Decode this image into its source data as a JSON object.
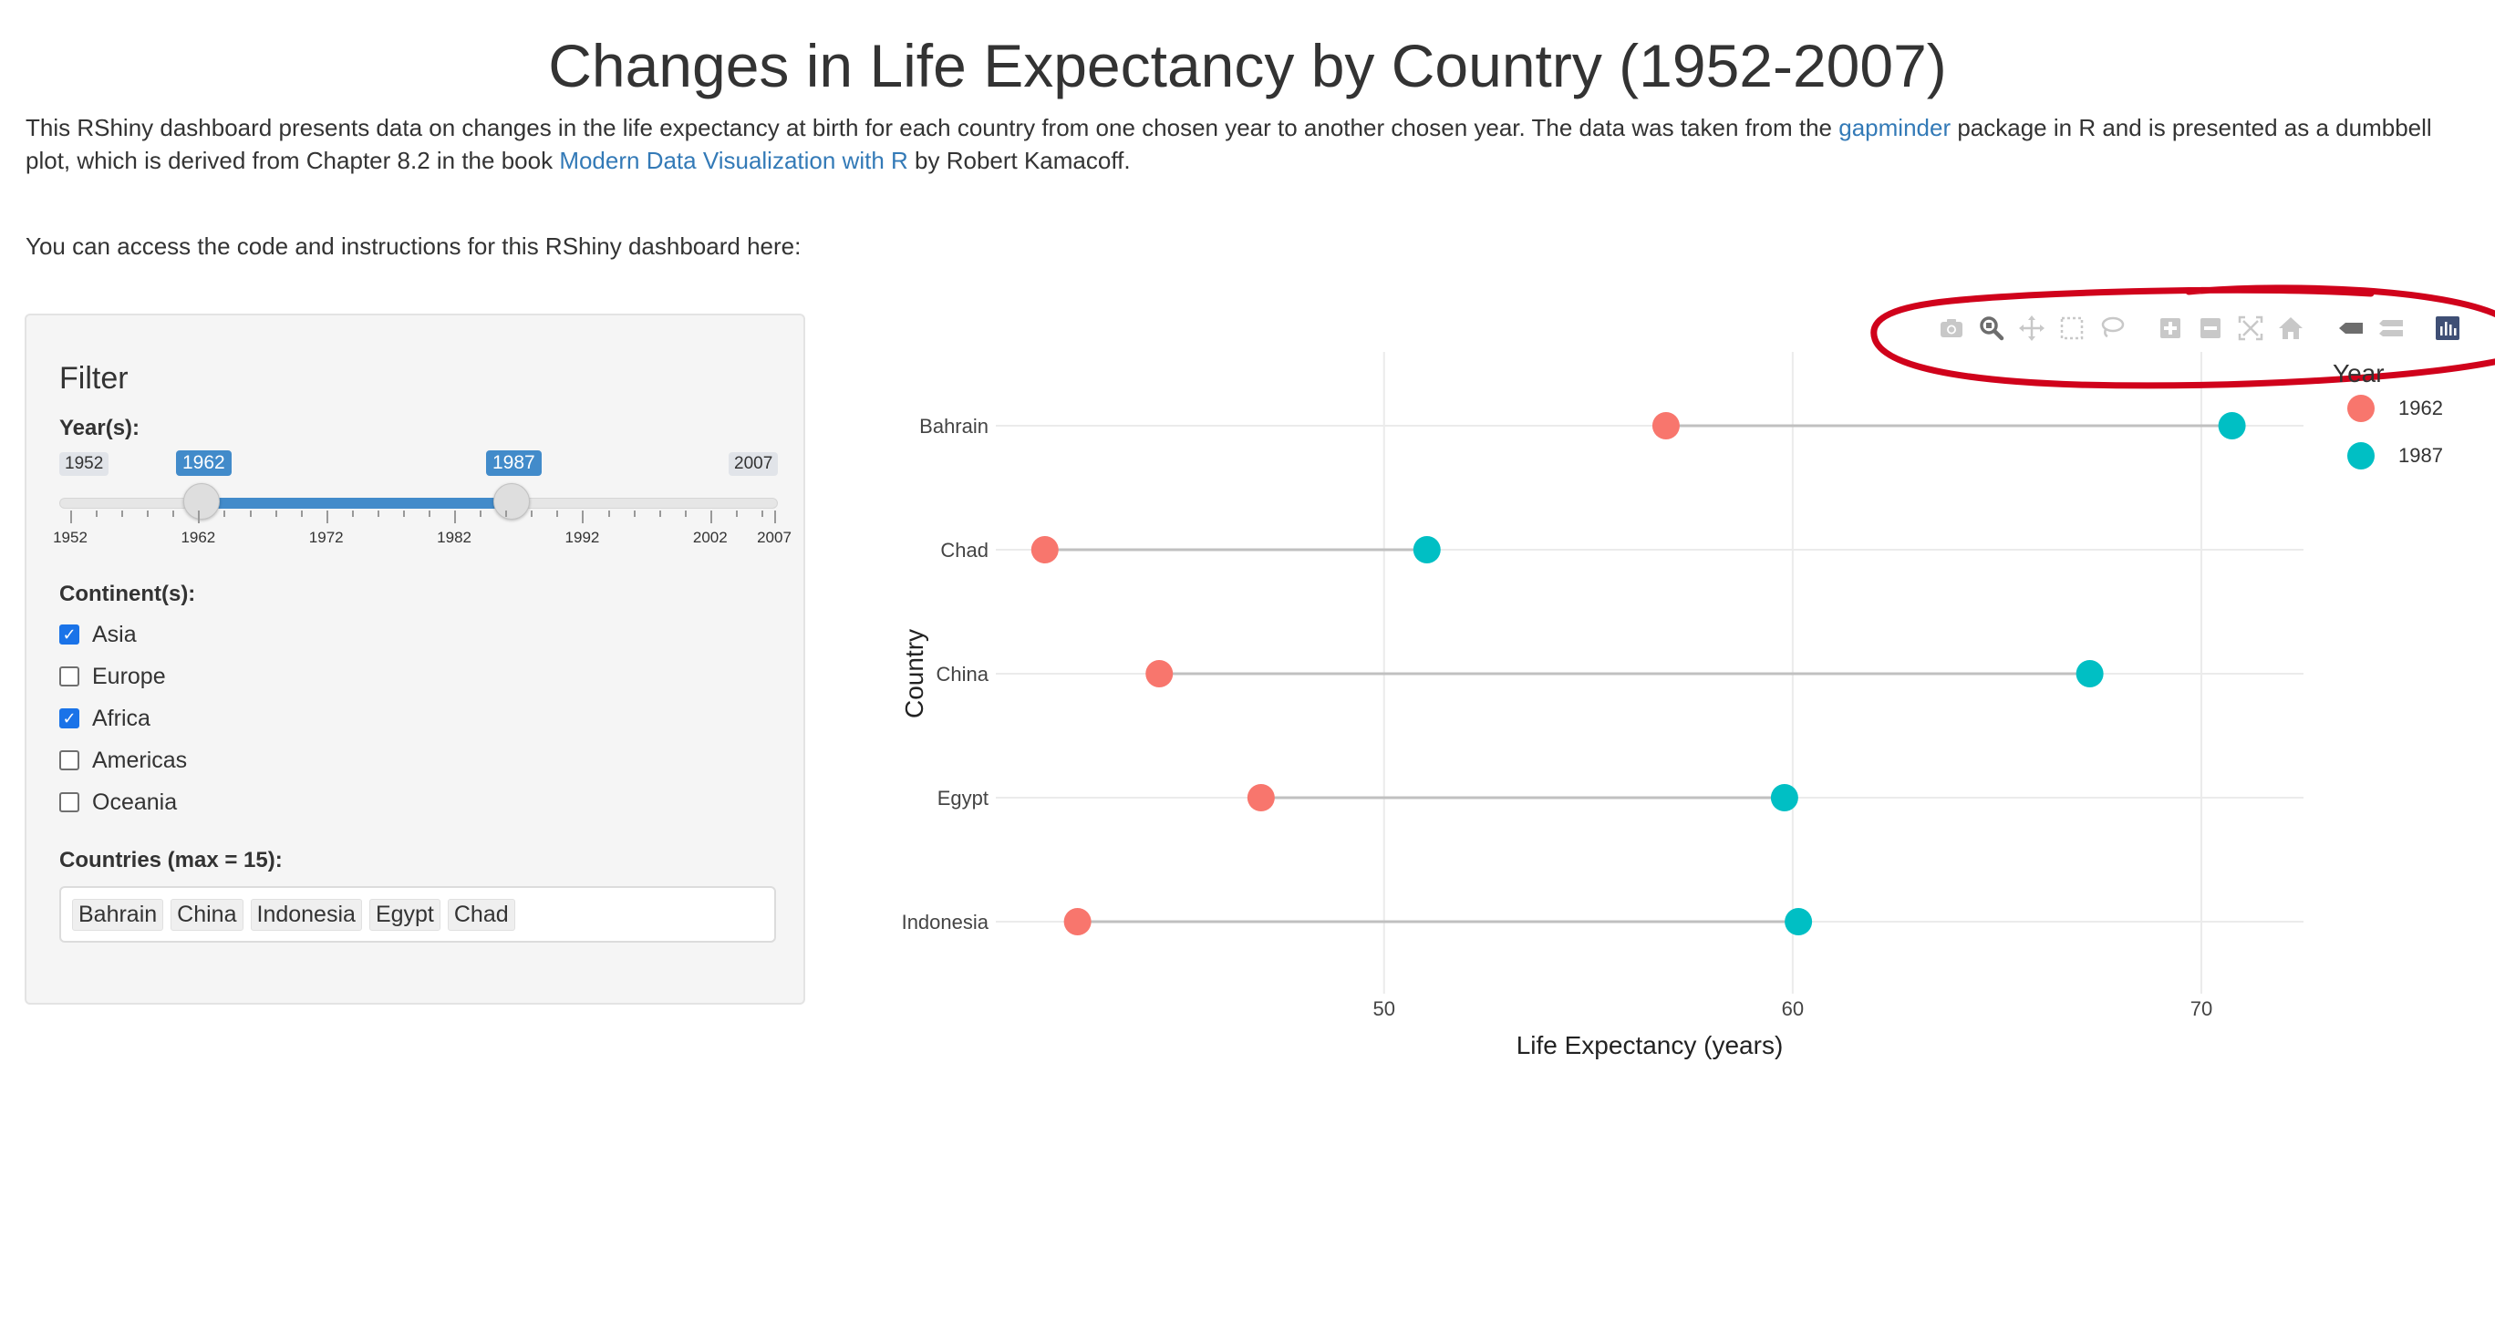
{
  "page": {
    "title": "Changes in Life Expectancy by Country (1952-2007)",
    "intro_part1": "This RShiny dashboard presents data on changes in the life expectancy at birth for each country from one chosen year to another chosen year. The data was taken from the ",
    "intro_link1": "gapminder",
    "intro_part2": " package in R and is presented as a dumbbell plot, which is derived from Chapter 8.2 in the book ",
    "intro_link2": "Modern Data Visualization with R",
    "intro_part3": " by Robert Kamacoff.",
    "access_text": "You can access the code and instructions for this RShiny dashboard here:"
  },
  "filter": {
    "title": "Filter",
    "years_label": "Year(s):",
    "slider": {
      "min": 1952,
      "max": 2007,
      "from": 1962,
      "to": 1987,
      "min_label": "1952",
      "max_label": "2007",
      "from_label": "1962",
      "to_label": "1987",
      "tick_labels": [
        "1952",
        "1962",
        "1972",
        "1982",
        "1992",
        "2002",
        "2007"
      ]
    },
    "continents_label": "Continent(s):",
    "continents": [
      {
        "label": "Asia",
        "checked": true
      },
      {
        "label": "Europe",
        "checked": false
      },
      {
        "label": "Africa",
        "checked": true
      },
      {
        "label": "Americas",
        "checked": false
      },
      {
        "label": "Oceania",
        "checked": false
      }
    ],
    "countries_label": "Countries (max = 15):",
    "countries_selected": [
      "Bahrain",
      "China",
      "Indonesia",
      "Egypt",
      "Chad"
    ]
  },
  "modebar": {
    "buttons": [
      "camera-icon",
      "zoom-icon",
      "pan-icon",
      "box-select-icon",
      "lasso-select-icon",
      "zoom-in-icon",
      "zoom-out-icon",
      "autoscale-icon",
      "reset-axes-icon",
      "hover-closest-icon",
      "hover-compare-icon",
      "plotly-logo-icon"
    ]
  },
  "colors": {
    "year1": "#F8766D",
    "year2": "#00BFC4",
    "segment": "#c0c0c0",
    "annotation": "#d0021b"
  },
  "chart_data": {
    "type": "scatter",
    "subtype": "dumbbell",
    "xlabel": "Life Expectancy (years)",
    "ylabel": "Country",
    "xlim": [
      40.5,
      72.5
    ],
    "xticks": [
      50,
      60,
      70
    ],
    "grid": true,
    "legend_title": "Year",
    "legend_position": "top-right",
    "categories": [
      "Bahrain",
      "Chad",
      "China",
      "Egypt",
      "Indonesia"
    ],
    "series": [
      {
        "name": "1962",
        "color": "#F8766D",
        "values": [
          56.9,
          41.7,
          44.5,
          46.99,
          42.5
        ]
      },
      {
        "name": "1987",
        "color": "#00BFC4",
        "values": [
          70.75,
          51.05,
          67.27,
          59.8,
          60.14
        ]
      }
    ]
  }
}
